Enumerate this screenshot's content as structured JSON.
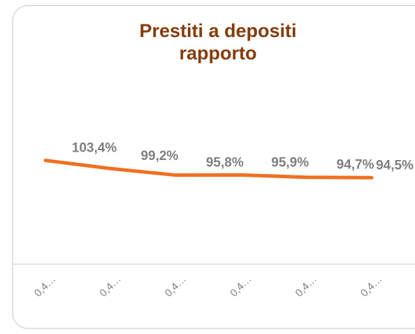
{
  "chart_data": {
    "type": "line",
    "title": "Prestiti a depositi rapporto",
    "categories": [
      "0,4…",
      "0,4…",
      "0,4…",
      "0,4…",
      "0,4…",
      "0,4…"
    ],
    "series": [
      {
        "color": "#f07020",
        "values": [
          103.4,
          99.2,
          95.8,
          95.9,
          94.7,
          94.5
        ],
        "value_labels": [
          "103,4%",
          "99,2%",
          "95,8%",
          "95,9%",
          "94,7%",
          "94,5%"
        ]
      }
    ],
    "ylim": [
      50,
      150
    ]
  }
}
